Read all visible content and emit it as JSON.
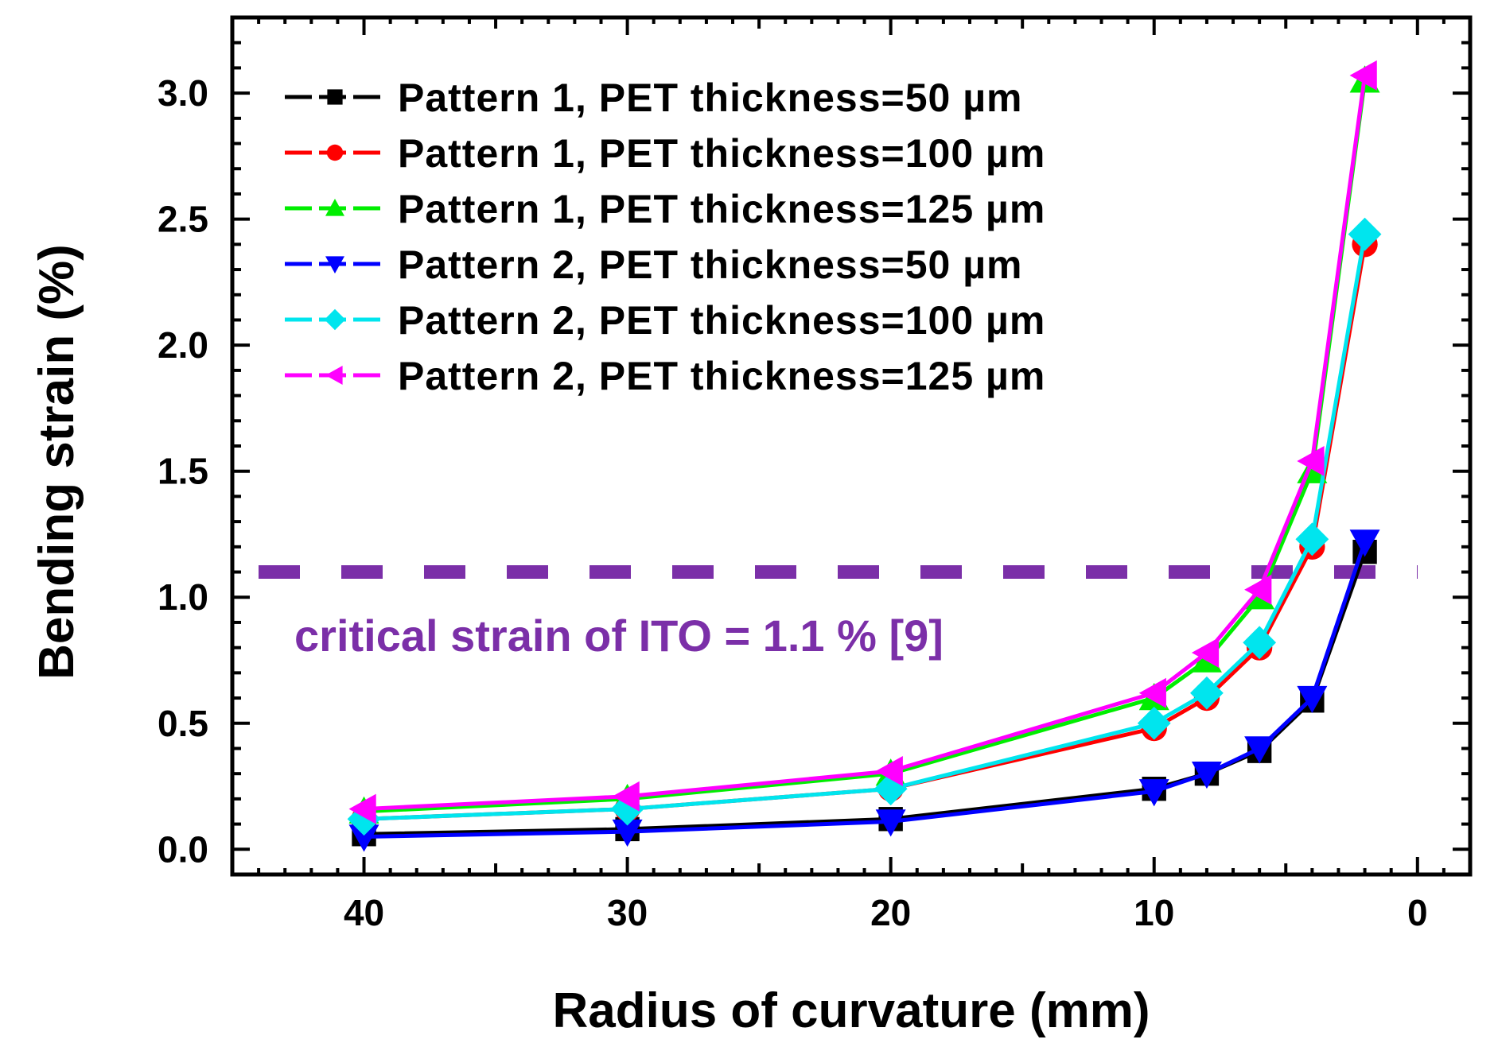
{
  "chart_data": {
    "type": "line",
    "title": "",
    "xlabel": "Radius of curvature (mm)",
    "ylabel": "Bending strain (%)",
    "xlim": [
      45,
      -2
    ],
    "ylim": [
      -0.1,
      3.3
    ],
    "x_reversed": true,
    "xticks": [
      40,
      30,
      20,
      10,
      0
    ],
    "xtick_labels": [
      "40",
      "30",
      "20",
      "10",
      "0"
    ],
    "yticks": [
      0.0,
      0.5,
      1.0,
      1.5,
      2.0,
      2.5,
      3.0
    ],
    "ytick_labels": [
      "0.0",
      "0.5",
      "1.0",
      "1.5",
      "2.0",
      "2.5",
      "3.0"
    ],
    "x": [
      40,
      30,
      20,
      10,
      8,
      6,
      4,
      2
    ],
    "series": [
      {
        "name": "Pattern 1, PET thickness=50 µm",
        "color": "#000000",
        "marker": "square",
        "values": [
          0.06,
          0.08,
          0.12,
          0.24,
          0.3,
          0.39,
          0.59,
          1.18
        ]
      },
      {
        "name": "Pattern 1, PET thickness=100 µm",
        "color": "#ff0000",
        "marker": "circle",
        "values": [
          0.12,
          0.16,
          0.24,
          0.48,
          0.6,
          0.8,
          1.2,
          2.4
        ]
      },
      {
        "name": "Pattern 1, PET thickness=125 µm",
        "color": "#00ee00",
        "marker": "triangle-up",
        "values": [
          0.15,
          0.2,
          0.3,
          0.6,
          0.75,
          1.0,
          1.5,
          3.05
        ]
      },
      {
        "name": "Pattern 2, PET thickness=50 µm",
        "color": "#0000ff",
        "marker": "triangle-down",
        "values": [
          0.05,
          0.07,
          0.11,
          0.23,
          0.3,
          0.4,
          0.6,
          1.22
        ]
      },
      {
        "name": "Pattern 2, PET thickness=100 µm",
        "color": "#00e5ee",
        "marker": "diamond",
        "values": [
          0.12,
          0.16,
          0.24,
          0.5,
          0.62,
          0.82,
          1.23,
          2.44
        ]
      },
      {
        "name": "Pattern 2, PET thickness=125 µm",
        "color": "#ff00ff",
        "marker": "triangle-left",
        "values": [
          0.16,
          0.21,
          0.31,
          0.62,
          0.78,
          1.03,
          1.54,
          3.07
        ]
      }
    ],
    "reference_line": {
      "y": 1.1,
      "label": "critical strain of ITO = 1.1 % [9]",
      "color": "#7b2fa8",
      "style": "dashed"
    },
    "legend_position": "top-left",
    "grid": false
  }
}
